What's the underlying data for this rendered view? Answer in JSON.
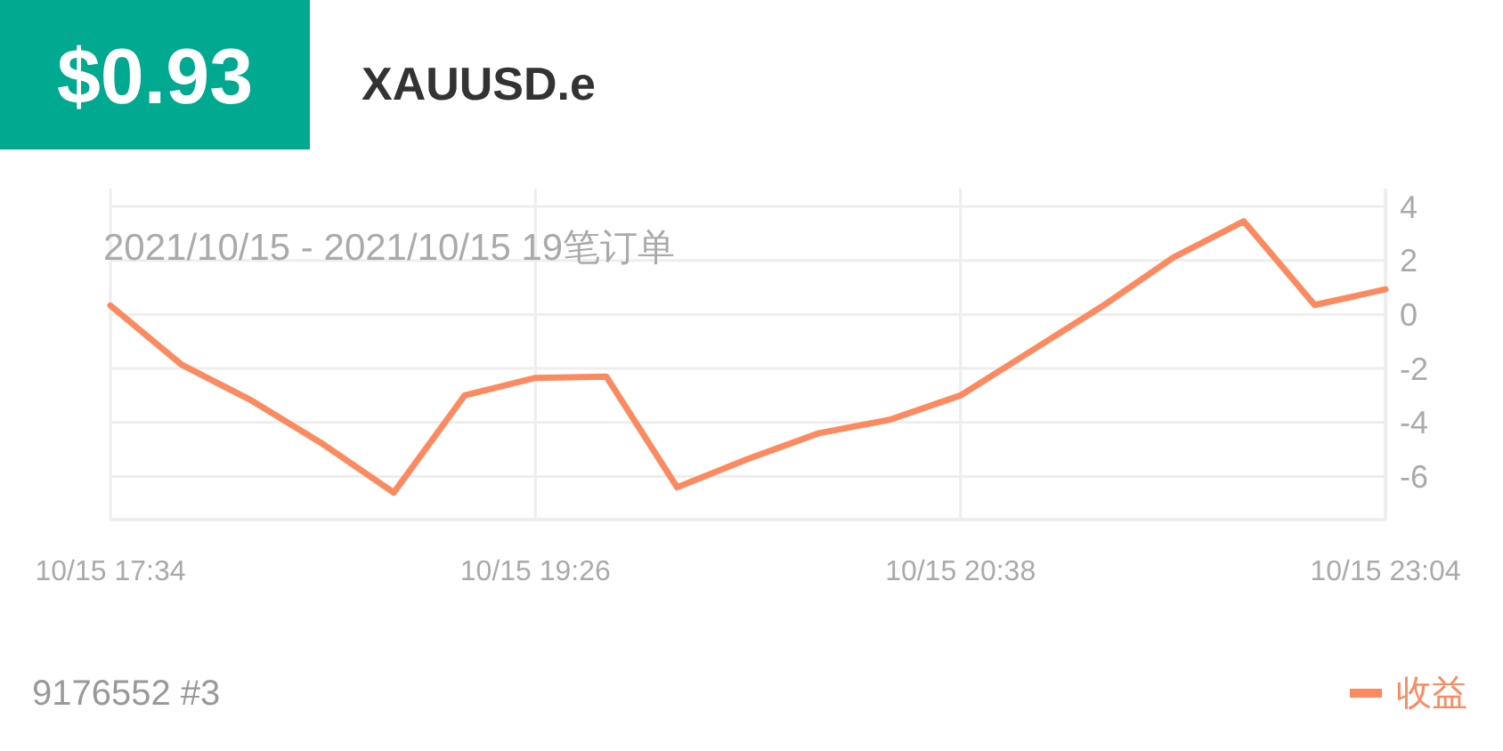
{
  "chart_data": {
    "type": "line",
    "title": "$0.93",
    "subtitle": "XAUUSD.e",
    "annotations": [
      "2021/10/15 - 2021/10/15  19笔订单",
      "9176552 #3"
    ],
    "categories": [
      "10/15 17:34",
      null,
      null,
      null,
      null,
      null,
      "10/15 19:26",
      null,
      null,
      null,
      null,
      null,
      "10/15 20:38",
      null,
      null,
      null,
      null,
      null,
      "10/15 23:04"
    ],
    "series": [
      {
        "name": "收益",
        "color": "#fc8a60",
        "values": [
          0.33,
          -1.85,
          -3.2,
          -4.8,
          -6.6,
          -3.0,
          -2.35,
          -2.3,
          -6.4,
          -5.35,
          -4.4,
          -3.9,
          -3.0,
          -1.35,
          0.3,
          2.1,
          3.45,
          0.35,
          0.93
        ]
      }
    ],
    "ylim": [
      -7.6,
      4
    ],
    "yticks": [
      -6,
      -4,
      -2,
      0,
      2,
      4
    ],
    "grid": true,
    "legend": "bottom right",
    "marker": "none",
    "line_style": "solid"
  }
}
